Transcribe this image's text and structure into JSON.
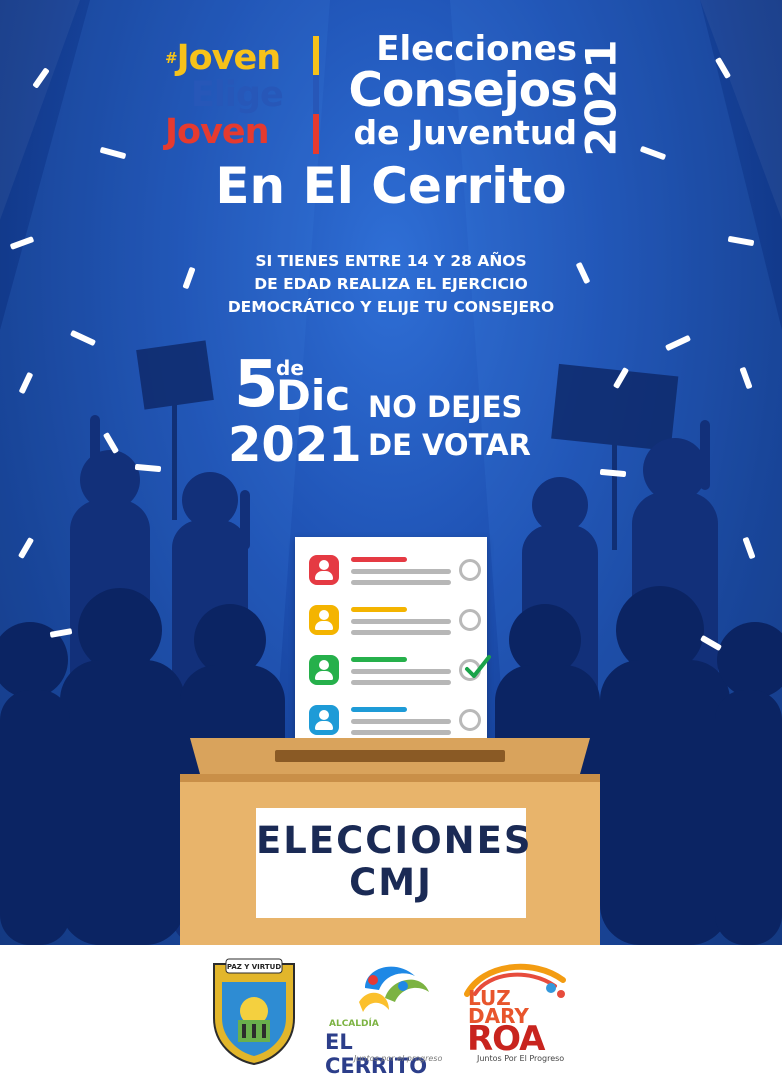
{
  "brand": {
    "hash": "#",
    "line1": "Joven",
    "line2": "Elige",
    "line3": "Joven"
  },
  "title": {
    "line1": "Elecciones",
    "line2": "Consejos",
    "line3": "de Juventud",
    "year": "2021"
  },
  "place": "En El Cerrito",
  "subtitle": {
    "line1": "SI TIENES ENTRE 14 Y 28 AÑOS",
    "line2": "DE EDAD REALIZA EL EJERCICIO",
    "line3": "DEMOCRÁTICO Y ELIJE TU CONSEJERO"
  },
  "date": {
    "day": "5",
    "de": "de",
    "month": "Dic",
    "year": "2021"
  },
  "cta": {
    "line1": "NO DEJES",
    "line2": "DE VOTAR"
  },
  "ballot": {
    "candidates": [
      {
        "color": "#e53a43",
        "checked": false
      },
      {
        "color": "#f4b400",
        "checked": false
      },
      {
        "color": "#26b04b",
        "checked": true
      },
      {
        "color": "#1e9bd7",
        "checked": false
      }
    ]
  },
  "box": {
    "line1": "ELECCIONES",
    "line2": "CMJ"
  },
  "footer": {
    "shield_motto": "PAZ Y VIRTUD",
    "mayor_top": "ALCALDÍA",
    "mayor_name": "EL CERRITO",
    "mayor_tag": "Juntos por el progreso",
    "roa_line1": "LUZ",
    "roa_line2": "DARY",
    "roa_line3": "ROA",
    "roa_tag": "Juntos Por El Progreso"
  },
  "colors": {
    "bg_blue": "#1d4fb0",
    "yellow": "#f6c21a",
    "red": "#e53a2f",
    "box": "#e8b46b"
  }
}
